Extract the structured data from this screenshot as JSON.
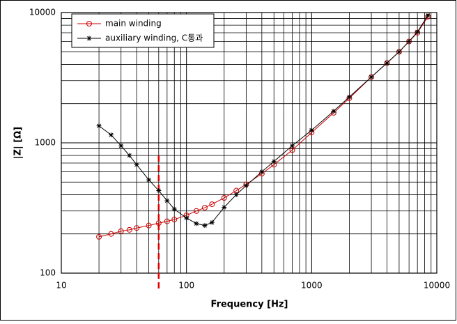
{
  "chart_data": {
    "type": "line",
    "xlabel": "Frequency [Hz]",
    "ylabel": "|Z| [Ω]",
    "x": [
      20,
      25,
      30,
      35,
      40,
      50,
      60,
      70,
      80,
      100,
      120,
      140,
      160,
      200,
      250,
      300,
      400,
      500,
      700,
      1000,
      1500,
      2000,
      3000,
      4000,
      5000,
      6000,
      7000,
      8500
    ],
    "series": [
      {
        "name": "main winding",
        "color": "#cc0000",
        "marker": "circle",
        "values": [
          190,
          200,
          210,
          215,
          222,
          232,
          242,
          250,
          258,
          278,
          300,
          318,
          338,
          378,
          430,
          480,
          580,
          680,
          880,
          1200,
          1700,
          2200,
          3200,
          4100,
          5000,
          6000,
          7000,
          9300
        ]
      },
      {
        "name": "auxiliary winding, C통과",
        "color": "#000000",
        "marker": "star",
        "values": [
          1350,
          1150,
          950,
          800,
          680,
          520,
          430,
          360,
          310,
          265,
          240,
          232,
          245,
          320,
          400,
          470,
          600,
          720,
          950,
          1250,
          1750,
          2250,
          3200,
          4100,
          5000,
          6000,
          7100,
          9500
        ]
      }
    ],
    "vline_x": 60,
    "vline_color": "#e00000",
    "xlim": [
      10,
      10000
    ],
    "ylim": [
      100,
      10000
    ],
    "xticks": [
      10,
      100,
      1000,
      10000
    ],
    "yticks": [
      100,
      1000,
      10000
    ],
    "log_x": true,
    "log_y": true,
    "grid": true,
    "legend": "upper-left"
  }
}
